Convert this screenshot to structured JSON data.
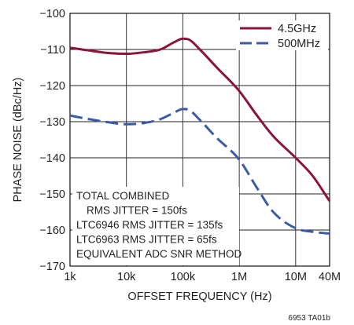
{
  "chart_data": {
    "type": "line",
    "title": "",
    "xlabel": "OFFSET FREQUENCY (Hz)",
    "ylabel": "PHASE NOISE (dBc/Hz)",
    "x_scale": "log",
    "xlim": [
      1000,
      40000000
    ],
    "ylim": [
      -170,
      -100
    ],
    "x_ticks": [
      {
        "value": 1000,
        "label": "1k"
      },
      {
        "value": 10000,
        "label": "10k"
      },
      {
        "value": 100000,
        "label": "100k"
      },
      {
        "value": 1000000,
        "label": "1M"
      },
      {
        "value": 10000000,
        "label": "10M"
      },
      {
        "value": 40000000,
        "label": "40M"
      }
    ],
    "y_ticks": [
      {
        "value": -100,
        "label": "−100"
      },
      {
        "value": -110,
        "label": "−110"
      },
      {
        "value": -120,
        "label": "−120"
      },
      {
        "value": -130,
        "label": "−130"
      },
      {
        "value": -140,
        "label": "−140"
      },
      {
        "value": -150,
        "label": "−150"
      },
      {
        "value": -160,
        "label": "−160"
      },
      {
        "value": -170,
        "label": "−170"
      }
    ],
    "grid": true,
    "legend_position": "top-right",
    "series": [
      {
        "name": "4.5GHz",
        "color": "#8b1538",
        "style": "solid",
        "x": [
          1000,
          2000,
          5000,
          10000,
          20000,
          40000,
          70000,
          100000,
          130000,
          200000,
          400000,
          1000000,
          2000000,
          4000000,
          10000000,
          20000000,
          40000000
        ],
        "y": [
          -109.5,
          -110.2,
          -111,
          -111.2,
          -110.8,
          -110,
          -108,
          -107,
          -107.3,
          -110,
          -115,
          -121.5,
          -128,
          -134,
          -140,
          -145,
          -152
        ]
      },
      {
        "name": "500MHz",
        "color": "#3a5ba9",
        "style": "dashed",
        "x": [
          1000,
          2000,
          5000,
          10000,
          20000,
          40000,
          70000,
          100000,
          130000,
          200000,
          400000,
          1000000,
          2000000,
          4000000,
          10000000,
          20000000,
          40000000
        ],
        "y": [
          -128.3,
          -129.2,
          -130.2,
          -130.7,
          -130.4,
          -129.3,
          -127.5,
          -126.5,
          -126.8,
          -129.5,
          -134.5,
          -140.5,
          -148,
          -155,
          -159.5,
          -160.5,
          -161
        ]
      }
    ],
    "annotations": [
      "TOTAL COMBINED",
      "RMS JITTER = 150fs",
      "LTC6946 RMS JITTER = 135fs",
      "LTC6963 RMS JITTER = 65fs",
      "EQUIVALENT ADC SNR METHOD"
    ],
    "figure_code": "6953 TA01b"
  }
}
